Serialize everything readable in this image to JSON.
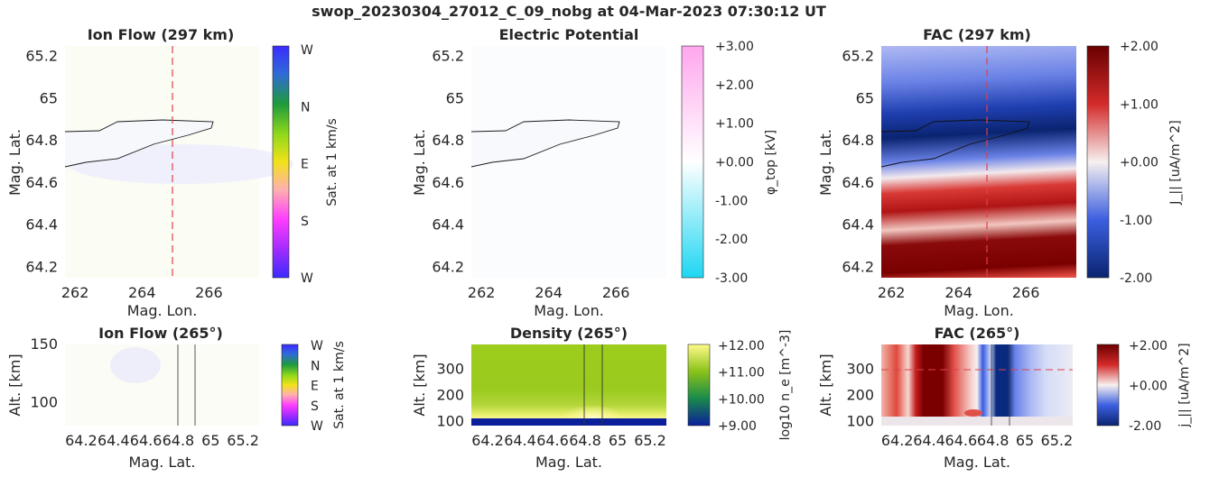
{
  "figure_title": "swop_20230304_27012_C_09_nobg at 04-Mar-2023 07:30:12 UT",
  "colors": {
    "flow_tint": "#f2f2ff",
    "potential_tint": "#fafcff",
    "dash": "#e0404a",
    "fac_red": "#7a0000",
    "fac_blue": "#0a2a80",
    "density_green": "#8cc21a",
    "density_yellow": "#fffba0",
    "density_blue": "#0b1f9a"
  },
  "chart_data": [
    {
      "id": "ion-flow-top",
      "type": "heatmap",
      "title": "Ion Flow (297 km)",
      "xlabel": "Mag. Lon.",
      "ylabel": "Mag. Lat.",
      "xlim": [
        261.7,
        267.5
      ],
      "ylim": [
        64.15,
        65.25
      ],
      "xticks": [
        "262",
        "264",
        "266"
      ],
      "xtick_values": [
        262,
        264,
        266
      ],
      "yticks": [
        "64.2",
        "64.4",
        "64.6",
        "64.8",
        "65",
        "65.2"
      ],
      "ytick_values": [
        64.2,
        64.4,
        64.6,
        64.8,
        65.0,
        65.2
      ],
      "cut_longitude": 265,
      "colorbar": {
        "label": "Sat. at 1 km/s",
        "ticks": [
          "W",
          "N",
          "E",
          "S",
          "W"
        ],
        "colors": [
          "#3a2bff",
          "#2f6bd8",
          "#1f9a3c",
          "#8fd81a",
          "#f2e21a",
          "#ffb0b0",
          "#ff3cff",
          "#7a2bff",
          "#3a2bff"
        ]
      }
    },
    {
      "id": "electric-potential",
      "type": "heatmap",
      "title": "Electric Potential",
      "xlabel": "Mag. Lon.",
      "ylabel": "Mag. Lat.",
      "xlim": [
        261.7,
        267.5
      ],
      "ylim": [
        64.15,
        65.25
      ],
      "xticks": [
        "262",
        "264",
        "266"
      ],
      "xtick_values": [
        262,
        264,
        266
      ],
      "yticks": [
        "64.2",
        "64.4",
        "64.6",
        "64.8",
        "65",
        "65.2"
      ],
      "ytick_values": [
        64.2,
        64.4,
        64.6,
        64.8,
        65.0,
        65.2
      ],
      "colorbar": {
        "label": "φ_top [kV]",
        "ticks": [
          "+3.00",
          "+2.00",
          "+1.00",
          "+0.00",
          "-1.00",
          "-2.00",
          "-3.00"
        ],
        "range": [
          -3,
          3
        ],
        "colors": [
          "#ffa6ee",
          "#ffffff",
          "#1ed6f2"
        ]
      }
    },
    {
      "id": "fac-top",
      "type": "heatmap",
      "title": "FAC (297 km)",
      "xlabel": "Mag. Lon.",
      "ylabel": "Mag. Lat.",
      "xlim": [
        261.7,
        267.5
      ],
      "ylim": [
        64.15,
        65.25
      ],
      "xticks": [
        "262",
        "264",
        "266"
      ],
      "xtick_values": [
        262,
        264,
        266
      ],
      "yticks": [
        "64.2",
        "64.4",
        "64.6",
        "64.8",
        "65",
        "65.2"
      ],
      "ytick_values": [
        64.2,
        64.4,
        64.6,
        64.8,
        65.0,
        65.2
      ],
      "cut_longitude": 265,
      "colorbar": {
        "label": "J_|| [uA/m^2]",
        "ticks": [
          "+2.00",
          "+1.00",
          "+0.00",
          "-1.00",
          "-2.00"
        ],
        "range": [
          -2,
          2
        ],
        "colors": [
          "#6a0000",
          "#d42a2a",
          "#f7f0f0",
          "#3b5fe0",
          "#0a2470"
        ]
      }
    },
    {
      "id": "ion-flow-bottom",
      "type": "heatmap",
      "title": "Ion Flow (265°)",
      "xlabel": "Mag. Lat.",
      "ylabel": "Alt. [km]",
      "xlim": [
        64.1,
        65.3
      ],
      "ylim": [
        80,
        150
      ],
      "xticks": [
        "64.2",
        "64.4",
        "64.6",
        "64.8",
        "65",
        "65.2"
      ],
      "xtick_values": [
        64.2,
        64.4,
        64.6,
        64.8,
        65.0,
        65.2
      ],
      "yticks": [
        "100",
        "150"
      ],
      "ytick_values": [
        100,
        150
      ],
      "arc_edges_lat": [
        64.76,
        64.86
      ],
      "colorbar": {
        "label": "Sat. at 1 km/s",
        "ticks": [
          "W",
          "N",
          "E",
          "S",
          "W"
        ]
      }
    },
    {
      "id": "density",
      "type": "heatmap",
      "title": "Density (265°)",
      "xlabel": "Mag. Lat.",
      "ylabel": "Alt. [km]",
      "xlim": [
        64.1,
        65.3
      ],
      "ylim": [
        85,
        395
      ],
      "xticks": [
        "64.2",
        "64.4",
        "64.6",
        "64.8",
        "65",
        "65.2"
      ],
      "xtick_values": [
        64.2,
        64.4,
        64.6,
        64.8,
        65.0,
        65.2
      ],
      "yticks": [
        "100",
        "200",
        "300"
      ],
      "ytick_values": [
        100,
        200,
        300
      ],
      "arc_edges_lat": [
        64.76,
        64.86
      ],
      "colorbar": {
        "label": "log10 n_e [m^-3]",
        "ticks": [
          "+12.00",
          "+11.00",
          "+10.00",
          "+9.00"
        ],
        "range": [
          9,
          12
        ]
      }
    },
    {
      "id": "fac-bottom",
      "type": "heatmap",
      "title": "FAC (265°)",
      "xlabel": "Mag. Lat.",
      "ylabel": "Alt. [km]",
      "xlim": [
        64.1,
        65.3
      ],
      "ylim": [
        85,
        395
      ],
      "xticks": [
        "64.2",
        "64.4",
        "64.6",
        "64.8",
        "65",
        "65.2"
      ],
      "xtick_values": [
        64.2,
        64.4,
        64.6,
        64.8,
        65.0,
        65.2
      ],
      "yticks": [
        "100",
        "200",
        "300"
      ],
      "ytick_values": [
        100,
        200,
        300
      ],
      "cut_altitude_km": 300,
      "arc_edges_lat": [
        64.76,
        64.86
      ],
      "colorbar": {
        "label": "j_|| [uA/m^2]",
        "ticks": [
          "+2.00",
          "+0.00",
          "-2.00"
        ],
        "range": [
          -2,
          2
        ]
      }
    }
  ]
}
